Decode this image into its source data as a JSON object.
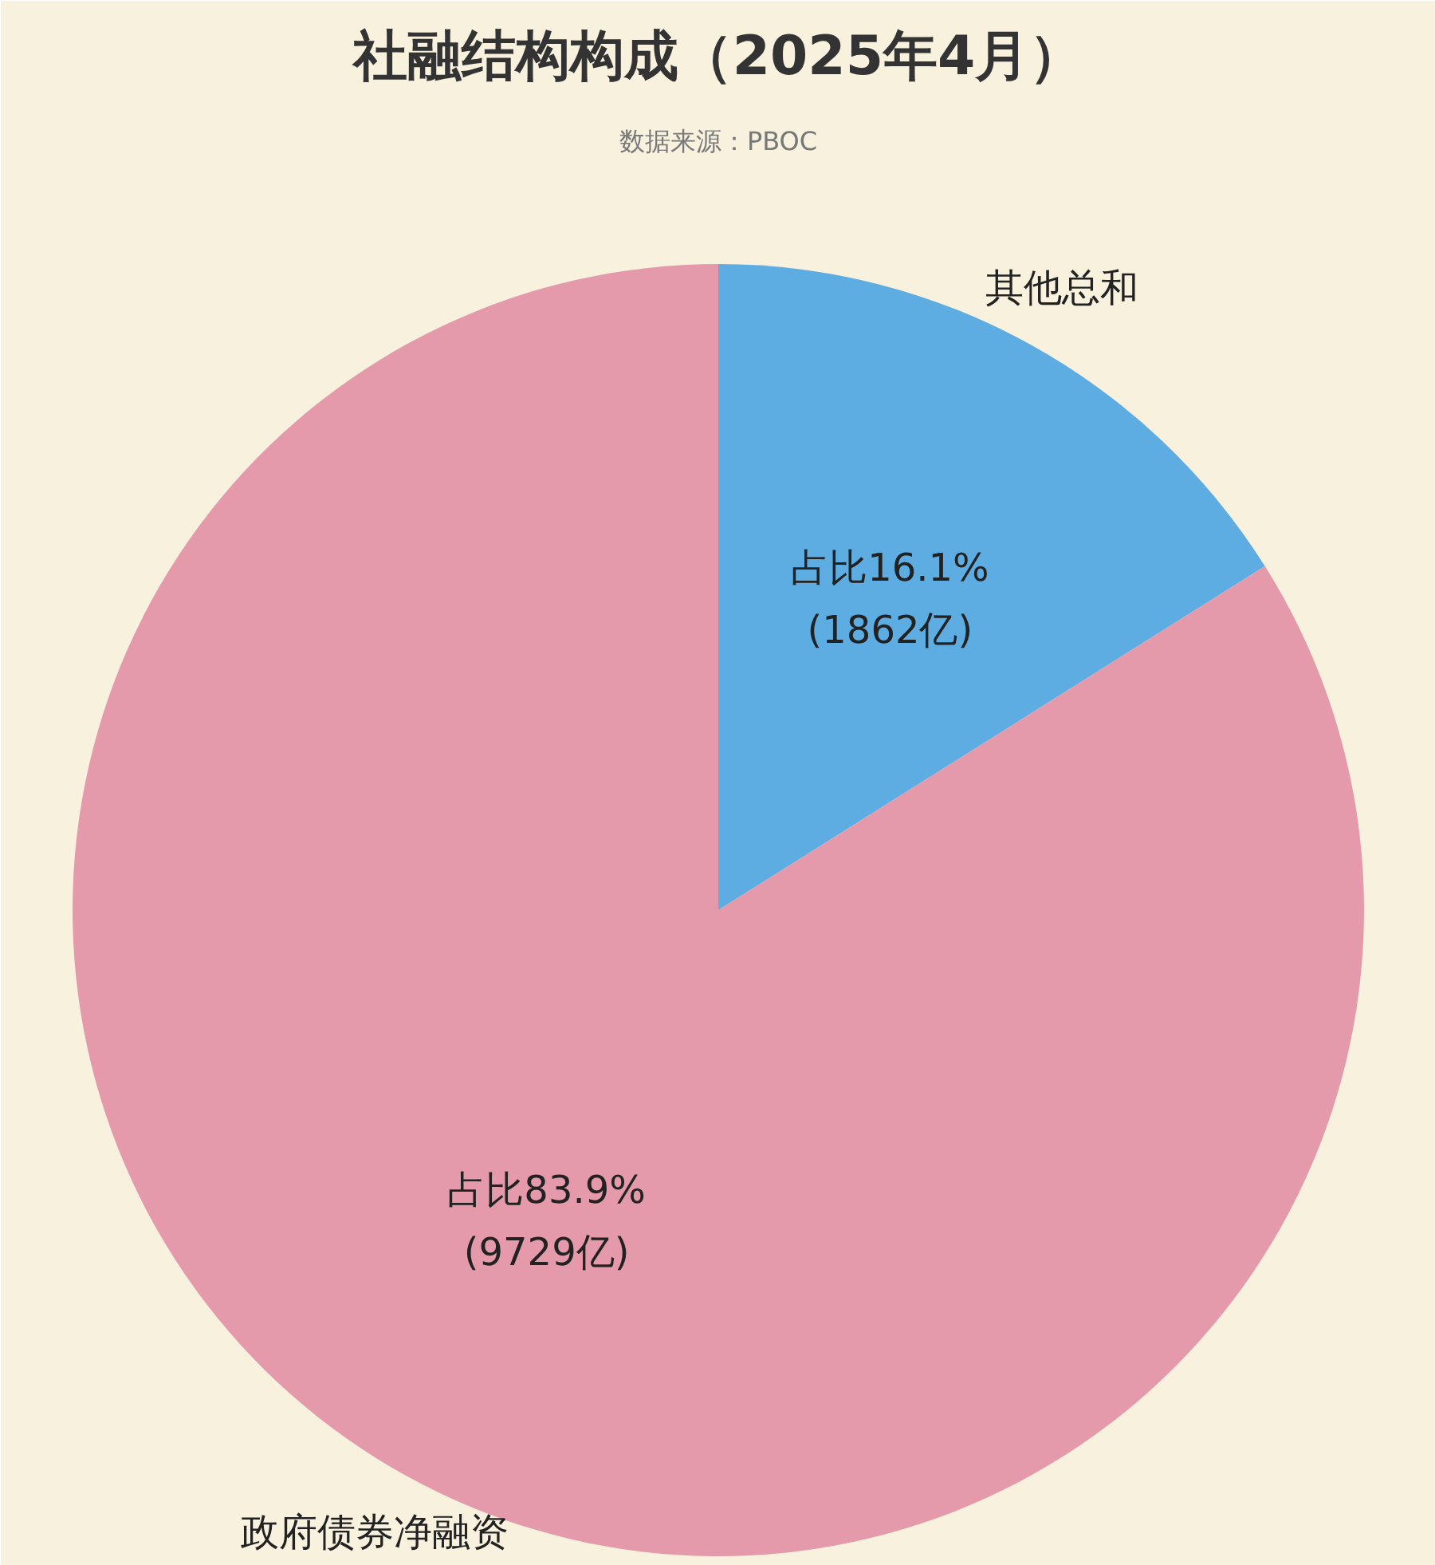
{
  "chart_data": {
    "type": "pie",
    "title": "社融结构构成（2025年4月）",
    "annotations": [
      "数据来源：PBOC"
    ],
    "categories": [
      "其他总和",
      "政府债券净融资"
    ],
    "values": [
      1862,
      9729
    ],
    "colors": [
      "#5dade2",
      "#e59aab"
    ],
    "value_labels": [
      "占比16.1%\n(1862亿)",
      "占比83.9%\n(9729亿)"
    ]
  }
}
